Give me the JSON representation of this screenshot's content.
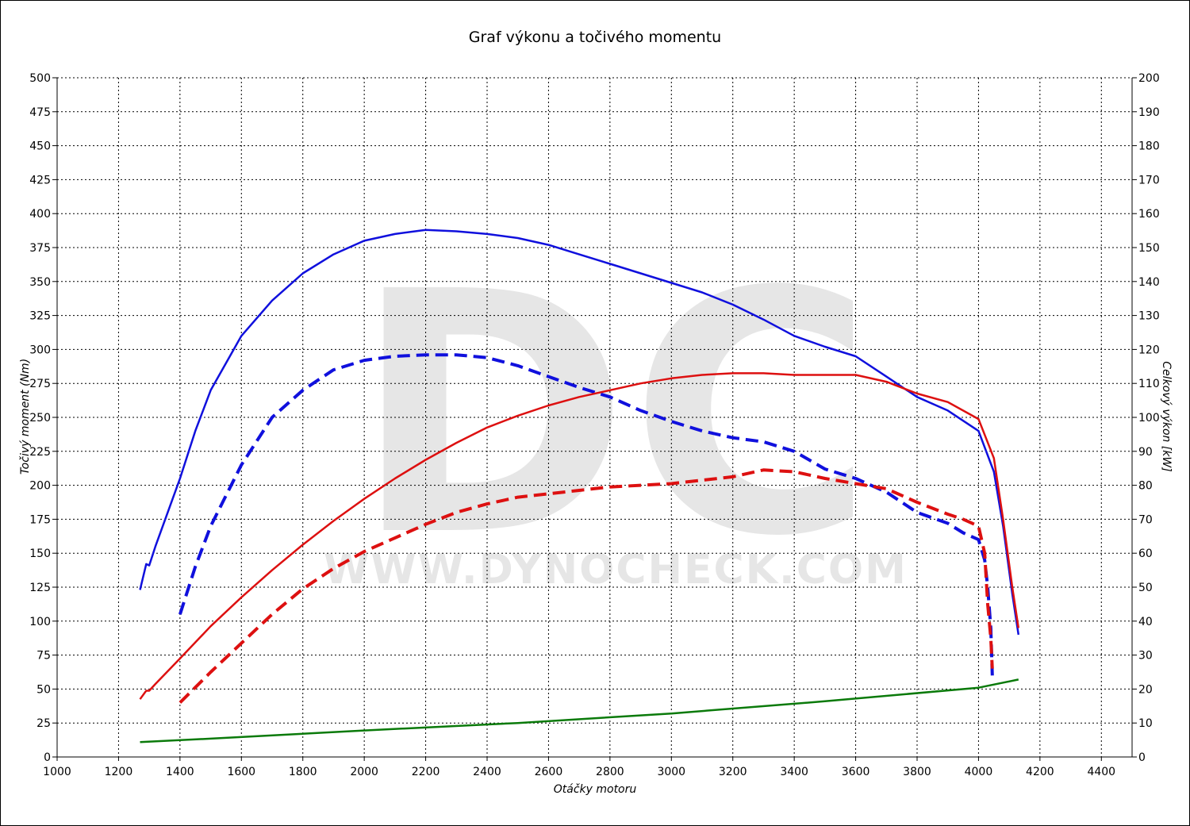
{
  "chart_data": {
    "type": "line",
    "title": "Graf výkonu a točivého momentu",
    "xlabel": "Otáčky motoru",
    "ylabel_left": "Točivý moment (Nm)",
    "ylabel_right": "Celkový výkon [kW]",
    "xlim": [
      1000,
      4500
    ],
    "ylim_left": [
      0,
      500
    ],
    "ylim_right": [
      0,
      200
    ],
    "x_ticks": [
      "1000",
      "1200",
      "1400",
      "1600",
      "1800",
      "2000",
      "2200",
      "2400",
      "2600",
      "2800",
      "3000",
      "3200",
      "3400",
      "3600",
      "3800",
      "4000",
      "4200",
      "4400"
    ],
    "y_ticks_left": [
      "0",
      "25",
      "50",
      "75",
      "100",
      "125",
      "150",
      "175",
      "200",
      "225",
      "250",
      "275",
      "300",
      "325",
      "350",
      "375",
      "400",
      "425",
      "450",
      "475",
      "500"
    ],
    "y_ticks_right": [
      "0",
      "10",
      "20",
      "30",
      "40",
      "50",
      "60",
      "70",
      "80",
      "90",
      "100",
      "110",
      "120",
      "130",
      "140",
      "150",
      "160",
      "170",
      "180",
      "190",
      "200"
    ],
    "grid": true,
    "watermark": {
      "logo": "DC",
      "url": "WWW.DYNOCHECK.COM"
    },
    "series": [
      {
        "color": "#1010dd",
        "dash": false,
        "axis": "left",
        "x": [
          1270,
          1290,
          1300,
          1320,
          1360,
          1400,
          1450,
          1500,
          1600,
          1700,
          1800,
          1900,
          2000,
          2100,
          2200,
          2300,
          2400,
          2500,
          2600,
          2700,
          2800,
          2900,
          3000,
          3100,
          3200,
          3300,
          3400,
          3500,
          3600,
          3700,
          3800,
          3900,
          4000,
          4050,
          4080,
          4110,
          4130
        ],
        "y": [
          123,
          142,
          141,
          155,
          180,
          205,
          240,
          270,
          310,
          336,
          356,
          370,
          380,
          385,
          388,
          387,
          385,
          382,
          377,
          370,
          363,
          356,
          349,
          342,
          333,
          322,
          310,
          302,
          295,
          280,
          265,
          255,
          240,
          210,
          170,
          120,
          90
        ]
      },
      {
        "color": "#1010dd",
        "dash": true,
        "axis": "left",
        "x": [
          1400,
          1450,
          1500,
          1600,
          1700,
          1800,
          1900,
          2000,
          2100,
          2200,
          2300,
          2400,
          2500,
          2600,
          2700,
          2800,
          2900,
          3000,
          3100,
          3200,
          3300,
          3400,
          3500,
          3600,
          3700,
          3800,
          3900,
          3950,
          4000,
          4020,
          4030,
          4040,
          4045
        ],
        "y": [
          105,
          140,
          170,
          215,
          250,
          270,
          285,
          292,
          295,
          296,
          296,
          294,
          288,
          280,
          272,
          265,
          255,
          247,
          240,
          235,
          232,
          225,
          212,
          205,
          195,
          180,
          172,
          165,
          160,
          145,
          125,
          95,
          60
        ]
      },
      {
        "color": "#dd1010",
        "dash": false,
        "axis": "right",
        "x": [
          1270,
          1290,
          1300,
          1320,
          1400,
          1500,
          1600,
          1700,
          1800,
          1900,
          2000,
          2100,
          2200,
          2300,
          2400,
          2500,
          2600,
          2700,
          2800,
          2900,
          3000,
          3100,
          3200,
          3300,
          3400,
          3500,
          3600,
          3700,
          3800,
          3900,
          4000,
          4050,
          4080,
          4110,
          4130
        ],
        "y": [
          17,
          19.5,
          19.5,
          21.5,
          29,
          38.5,
          47,
          55,
          62.5,
          69.5,
          76,
          82,
          87.5,
          92.5,
          97,
          100.5,
          103.5,
          106,
          108,
          110,
          111.5,
          112.5,
          113,
          113,
          112.5,
          112.5,
          112.5,
          110.5,
          107,
          104.5,
          99.5,
          88,
          70,
          50,
          38
        ]
      },
      {
        "color": "#dd1010",
        "dash": true,
        "axis": "right",
        "x": [
          1400,
          1450,
          1500,
          1600,
          1700,
          1800,
          1900,
          2000,
          2100,
          2200,
          2300,
          2400,
          2500,
          2600,
          2700,
          2800,
          2900,
          3000,
          3100,
          3200,
          3300,
          3400,
          3500,
          3600,
          3700,
          3800,
          3900,
          3950,
          4000,
          4020,
          4030,
          4040,
          4045
        ],
        "y": [
          16,
          20.5,
          25,
          33.5,
          42,
          49.5,
          55.5,
          60.5,
          64.5,
          68.5,
          72,
          74.5,
          76.5,
          77.5,
          78.5,
          79.5,
          80,
          80.5,
          81.5,
          82.5,
          84.5,
          84,
          82,
          80.5,
          79,
          75,
          71.5,
          70,
          68,
          60,
          45,
          35,
          26
        ]
      },
      {
        "color": "#0a7a0a",
        "dash": false,
        "axis": "left",
        "x": [
          1270,
          1500,
          2000,
          2500,
          3000,
          3500,
          4000,
          4130
        ],
        "y": [
          11,
          13.5,
          19.5,
          25,
          32,
          41,
          51,
          57
        ]
      }
    ]
  }
}
